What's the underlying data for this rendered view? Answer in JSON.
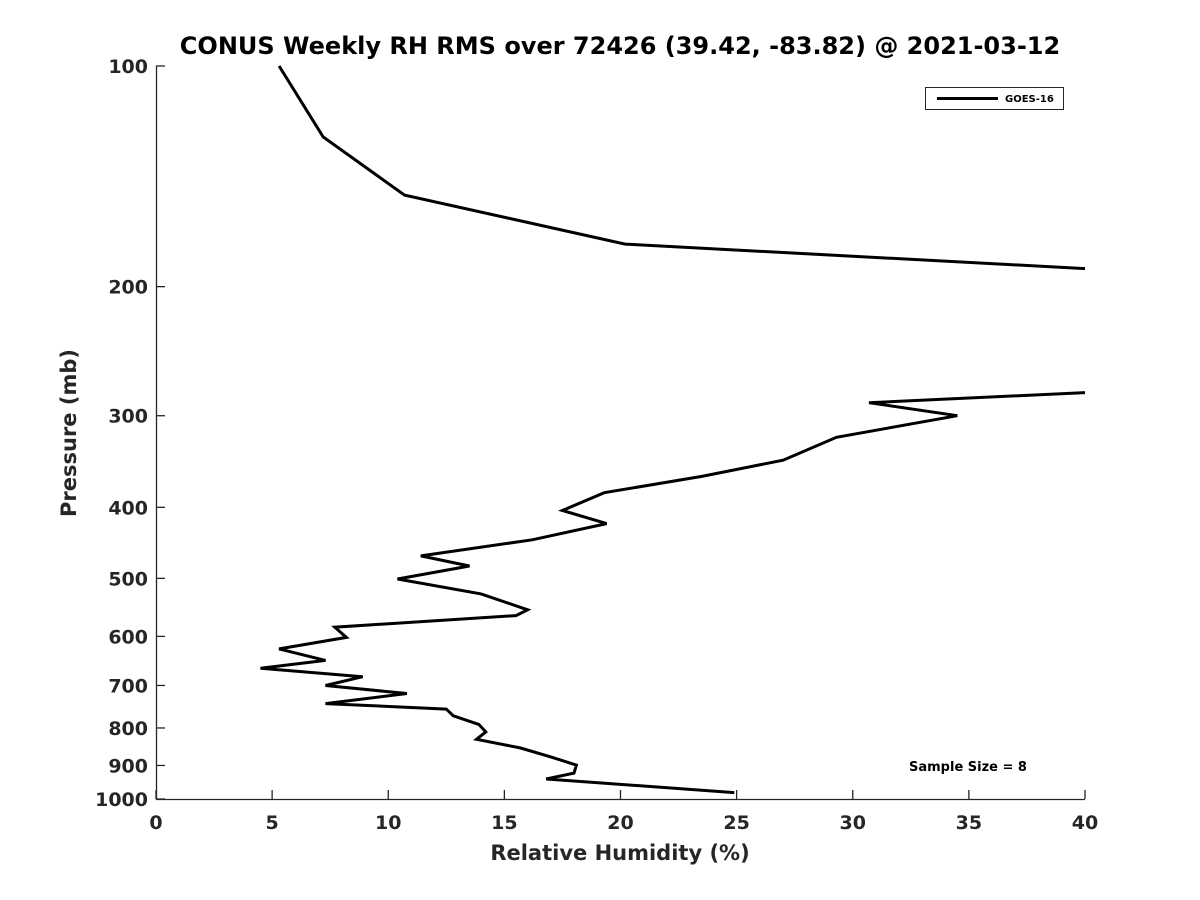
{
  "chart_data": {
    "type": "line",
    "title": "CONUS Weekly RH RMS over 72426 (39.42, -83.82) @ 2021-03-12",
    "xlabel": "Relative Humidity (%)",
    "ylabel": "Pressure (mb)",
    "xlim": [
      0,
      40
    ],
    "ylim": [
      100,
      1000
    ],
    "yscale": "log",
    "y_reversed": true,
    "x_ticks": [
      0,
      5,
      10,
      15,
      20,
      25,
      30,
      35,
      40
    ],
    "y_ticks": [
      100,
      200,
      300,
      400,
      500,
      600,
      700,
      800,
      900,
      1000
    ],
    "grid": false,
    "legend_position": "top-right",
    "annotation": "Sample Size = 8",
    "series": [
      {
        "name": "GOES-16",
        "color": "#000000",
        "segments": [
          [
            [
              5.3,
              100
            ],
            [
              7.2,
              125
            ],
            [
              10.7,
              150
            ],
            [
              20.2,
              175
            ],
            [
              40,
              189
            ]
          ],
          [
            [
              40,
              279
            ],
            [
              30.7,
              288
            ],
            [
              34.5,
              300
            ],
            [
              29.3,
              321
            ],
            [
              27.0,
              345
            ],
            [
              23.5,
              363
            ],
            [
              19.3,
              382
            ],
            [
              17.5,
              404
            ],
            [
              19.4,
              421
            ],
            [
              16.2,
              443
            ],
            [
              11.4,
              466
            ],
            [
              13.5,
              481
            ],
            [
              10.4,
              501
            ],
            [
              14.0,
              525
            ],
            [
              16.0,
              552
            ],
            [
              15.5,
              562
            ],
            [
              7.7,
              583
            ],
            [
              8.2,
              602
            ],
            [
              5.3,
              624
            ],
            [
              7.3,
              647
            ],
            [
              4.5,
              663
            ],
            [
              8.9,
              681
            ],
            [
              7.3,
              700
            ],
            [
              10.8,
              718
            ],
            [
              7.3,
              741
            ],
            [
              12.5,
              754
            ],
            [
              12.8,
              770
            ],
            [
              13.9,
              791
            ],
            [
              14.2,
              810
            ],
            [
              13.8,
              829
            ],
            [
              15.7,
              852
            ],
            [
              17.0,
              876
            ],
            [
              18.1,
              899
            ],
            [
              18.0,
              922
            ],
            [
              16.8,
              939
            ],
            [
              24.9,
              980
            ]
          ]
        ]
      }
    ]
  }
}
